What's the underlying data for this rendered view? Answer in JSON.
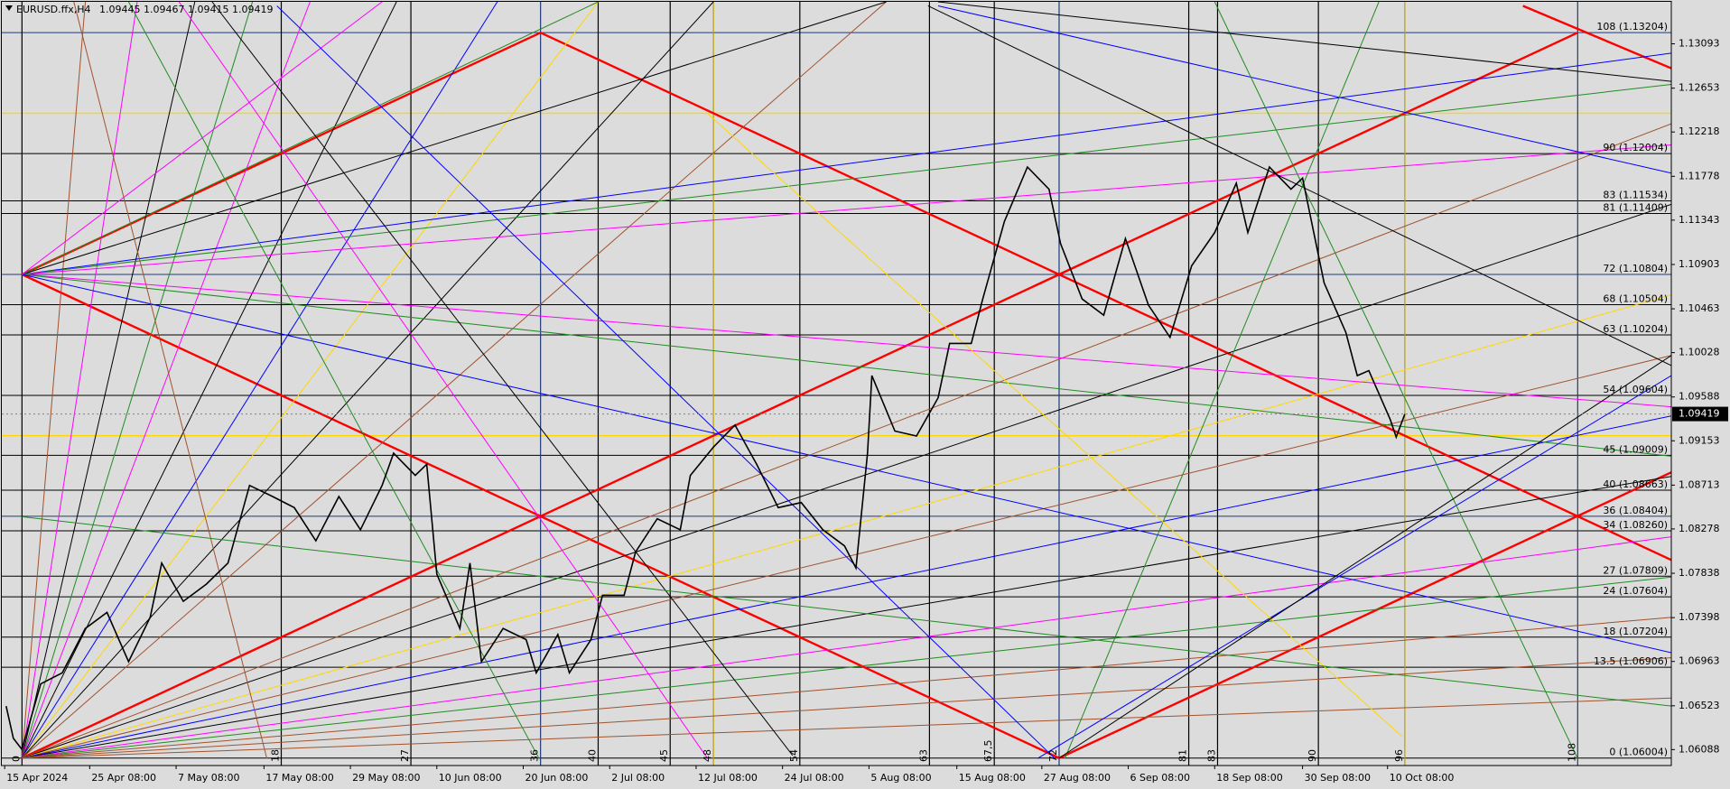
{
  "chart_data": {
    "type": "line",
    "title": "EURUSD.ffx,H4",
    "last_bar": [
      1.09445,
      1.09467,
      1.09415,
      1.09419
    ],
    "color": "#000000",
    "xlim": [
      -1.4,
      114.5
    ],
    "ylim": [
      1.0593,
      1.1351
    ],
    "yticks": [
      1.13093,
      1.12653,
      1.12218,
      1.11778,
      1.11343,
      1.10903,
      1.10463,
      1.10028,
      1.09588,
      1.09153,
      1.08713,
      1.08278,
      1.07838,
      1.07398,
      1.06963,
      1.06523,
      1.06088
    ],
    "xticks": [
      {
        "value": -1.2,
        "label": "15 Apr 2024"
      },
      {
        "value": 4.7,
        "label": "25 Apr 08:00"
      },
      {
        "value": 10.7,
        "label": "7 May 08:00"
      },
      {
        "value": 16.8,
        "label": "17 May 08:00"
      },
      {
        "value": 22.8,
        "label": "29 May 08:00"
      },
      {
        "value": 28.8,
        "label": "10 Jun 08:00"
      },
      {
        "value": 34.8,
        "label": "20 Jun 08:00"
      },
      {
        "value": 40.8,
        "label": "2 Jul 08:00"
      },
      {
        "value": 46.8,
        "label": "12 Jul 08:00"
      },
      {
        "value": 52.8,
        "label": "24 Jul 08:00"
      },
      {
        "value": 58.8,
        "label": "5 Aug 08:00"
      },
      {
        "value": 64.9,
        "label": "15 Aug 08:00"
      },
      {
        "value": 70.8,
        "label": "27 Aug 08:00"
      },
      {
        "value": 76.8,
        "label": "6 Sep 08:00"
      },
      {
        "value": 82.8,
        "label": "18 Sep 08:00"
      },
      {
        "value": 88.9,
        "label": "30 Sep 08:00"
      },
      {
        "value": 94.8,
        "label": "10 Oct 08:00"
      }
    ],
    "x": [
      -1.1,
      -0.6,
      0,
      1.3,
      2.8,
      4.4,
      5.9,
      7.4,
      8.9,
      9.7,
      11.2,
      12.8,
      14.3,
      15.8,
      17.4,
      18.9,
      20.4,
      22.0,
      23.5,
      25.0,
      25.8,
      27.3,
      28.1,
      28.8,
      30.4,
      31.1,
      31.9,
      33.4,
      35.0,
      35.7,
      37.2,
      38.0,
      39.5,
      40.3,
      41.8,
      42.6,
      44.1,
      45.7,
      46.4,
      48.0,
      49.5,
      51.0,
      52.5,
      54.1,
      55.6,
      57.1,
      57.9,
      58.7,
      59.0,
      60.6,
      62.1,
      63.6,
      64.4,
      65.9,
      66.7,
      68.2,
      69.8,
      71.3,
      72.1,
      73.6,
      75.1,
      76.6,
      78.2,
      79.7,
      81.2,
      82.8,
      84.3,
      85.1,
      86.6,
      88.1,
      88.9,
      90.4,
      91.9,
      92.7,
      93.5,
      95.0,
      95.4,
      96.0
    ],
    "values": [
      1.0652,
      1.062,
      1.0609,
      1.0674,
      1.0685,
      1.0729,
      1.0745,
      1.0696,
      1.074,
      1.0794,
      1.0756,
      1.0773,
      1.0794,
      1.0871,
      1.086,
      1.0849,
      1.0816,
      1.086,
      1.0827,
      1.0871,
      1.0903,
      1.0881,
      1.0892,
      1.0783,
      1.0729,
      1.0794,
      1.0696,
      1.0729,
      1.0718,
      1.0685,
      1.0723,
      1.0685,
      1.0718,
      1.0762,
      1.0762,
      1.0805,
      1.0838,
      1.0827,
      1.0881,
      1.0909,
      1.0931,
      1.0892,
      1.0849,
      1.0854,
      1.0827,
      1.0811,
      1.0789,
      1.0903,
      1.098,
      1.0925,
      1.092,
      1.0958,
      1.1012,
      1.1012,
      1.1056,
      1.1133,
      1.1187,
      1.1165,
      1.1111,
      1.1056,
      1.104,
      1.1116,
      1.105,
      1.1018,
      1.1089,
      1.1122,
      1.1171,
      1.1122,
      1.1187,
      1.1165,
      1.1176,
      1.1072,
      1.1023,
      1.098,
      1.0985,
      1.0936,
      1.0919,
      1.09419
    ],
    "levels": [
      {
        "value": 1.13204,
        "label": "108 (1.13204)",
        "color": "#1f3a7a"
      },
      {
        "value": 1.12004,
        "label": "90 (1.12004)",
        "color": "#000000"
      },
      {
        "value": 1.11534,
        "label": "83 (1.11534)",
        "color": "#000000"
      },
      {
        "value": 1.11409,
        "label": "81 (1.11409)",
        "color": "#000000"
      },
      {
        "value": 1.10804,
        "label": "72 (1.10804)",
        "color": "#1f3a7a"
      },
      {
        "value": 1.10504,
        "label": "68 (1.10504)",
        "color": "#000000"
      },
      {
        "value": 1.10204,
        "label": "63 (1.10204)",
        "color": "#000000"
      },
      {
        "value": 1.09604,
        "label": "54 (1.09604)",
        "color": "#000000"
      },
      {
        "value": 1.09009,
        "label": "45 (1.09009)",
        "color": "#000000"
      },
      {
        "value": 1.08663,
        "label": "40 (1.08663)",
        "color": "#000000"
      },
      {
        "value": 1.08404,
        "label": "36 (1.08404)",
        "color": "#1f3a7a"
      },
      {
        "value": 1.0826,
        "label": "34 (1.08260)",
        "color": "#000000"
      },
      {
        "value": 1.07809,
        "label": "27 (1.07809)",
        "color": "#000000"
      },
      {
        "value": 1.07604,
        "label": "24 (1.07604)",
        "color": "#000000"
      },
      {
        "value": 1.07204,
        "label": "18 (1.07204)",
        "color": "#000000"
      },
      {
        "value": 1.06906,
        "label": "13.5 (1.06906)",
        "color": "#000000"
      },
      {
        "value": 1.06004,
        "label": "0 (1.06004)",
        "color": "#000000"
      }
    ],
    "extra_levels": [
      1.12404,
      1.09204
    ],
    "extra_level_color": "#ffd700",
    "time_levels": [
      0,
      18,
      27,
      36,
      40,
      45,
      48,
      54,
      63,
      {
        "value": 67.5,
        "label": "67,5"
      },
      72,
      81,
      83,
      90,
      96,
      108
    ],
    "time_level_colors": [
      "#000000",
      "#000000",
      "#000000",
      "#1f3a7a",
      "#000000",
      "#000000",
      "#b8a000",
      "#000000",
      "#000000",
      "#000000",
      "#1f3a7a",
      "#000000",
      "#000000",
      "#000000",
      "#b8a000",
      "#1f3a7a"
    ],
    "lines": [
      {
        "points": [
          0,
          1.10804,
          36,
          1.13204
        ],
        "color": "#ff0000"
      },
      {
        "points": [
          0,
          1.10804,
          72,
          1.06004
        ],
        "color": "#ff0000"
      },
      {
        "points": [
          36,
          1.13204,
          114.5,
          1.0797
        ],
        "color": "#ff0000"
      },
      {
        "points": [
          72,
          1.06004,
          114.5,
          1.0884
        ],
        "color": "#ff0000"
      },
      {
        "points": [
          0,
          1.06004,
          108,
          1.13204
        ],
        "color": "#ff0000"
      },
      {
        "points": [
          104.2,
          1.1347,
          114.5,
          1.1285
        ],
        "color": "#ff0000"
      },
      {
        "points": [
          0,
          1.06004,
          4.4,
          1.1351
        ],
        "color": "#a0522d"
      },
      {
        "points": [
          0,
          1.06004,
          8,
          1.1351
        ],
        "color": "#ff00ff"
      },
      {
        "points": [
          0,
          1.06004,
          12,
          1.1351
        ],
        "color": "#000000"
      },
      {
        "points": [
          0,
          1.06004,
          16,
          1.1351
        ],
        "color": "#228b22"
      },
      {
        "points": [
          0,
          1.06004,
          20,
          1.1351
        ],
        "color": "#ff00ff"
      },
      {
        "points": [
          0,
          1.06004,
          26,
          1.1351
        ],
        "color": "#000000"
      },
      {
        "points": [
          0,
          1.06004,
          33,
          1.1351
        ],
        "color": "#0000ff"
      },
      {
        "points": [
          0,
          1.06004,
          40,
          1.1351
        ],
        "color": "#ffd700"
      },
      {
        "points": [
          0,
          1.06004,
          48,
          1.1351
        ],
        "color": "#000000"
      },
      {
        "points": [
          0,
          1.06004,
          60,
          1.1351
        ],
        "color": "#a0522d"
      },
      {
        "points": [
          0,
          1.06004,
          114.5,
          1.123
        ],
        "color": "#a0522d"
      },
      {
        "points": [
          0,
          1.06004,
          114.5,
          1.115
        ],
        "color": "#000000"
      },
      {
        "points": [
          0,
          1.06004,
          114.5,
          1.106
        ],
        "color": "#ffd700"
      },
      {
        "points": [
          0,
          1.06004,
          114.5,
          1.1
        ],
        "color": "#a0522d"
      },
      {
        "points": [
          0,
          1.06004,
          114.5,
          1.094
        ],
        "color": "#0000ff"
      },
      {
        "points": [
          0,
          1.06004,
          114.5,
          1.088
        ],
        "color": "#000000"
      },
      {
        "points": [
          0,
          1.06004,
          114.5,
          1.082
        ],
        "color": "#ff00ff"
      },
      {
        "points": [
          0,
          1.06004,
          114.5,
          1.078
        ],
        "color": "#228b22"
      },
      {
        "points": [
          0,
          1.06004,
          114.5,
          1.074
        ],
        "color": "#a0522d"
      },
      {
        "points": [
          0,
          1.06004,
          114.5,
          1.07
        ],
        "color": "#a0522d"
      },
      {
        "points": [
          0,
          1.06004,
          114.5,
          1.066
        ],
        "color": "#a0522d"
      },
      {
        "points": [
          0,
          1.10804,
          114.5,
          1.13
        ],
        "color": "#0000ff"
      },
      {
        "points": [
          0,
          1.10804,
          114.5,
          1.1269
        ],
        "color": "#228b22"
      },
      {
        "points": [
          0,
          1.10804,
          114.5,
          1.1209
        ],
        "color": "#ff00ff"
      },
      {
        "points": [
          0,
          1.10804,
          114.5,
          1.0949
        ],
        "color": "#ff00ff"
      },
      {
        "points": [
          0,
          1.10804,
          114.5,
          1.09
        ],
        "color": "#228b22"
      },
      {
        "points": [
          0,
          1.10804,
          114.5,
          1.0705
        ],
        "color": "#0000ff"
      },
      {
        "points": [
          0,
          1.10804,
          60,
          1.1351
        ],
        "color": "#000000"
      },
      {
        "points": [
          0,
          1.10804,
          40,
          1.1351
        ],
        "color": "#228b22"
      },
      {
        "points": [
          0,
          1.10804,
          25,
          1.1351
        ],
        "color": "#ff00ff"
      },
      {
        "points": [
          13.2,
          1.1351,
          53.5,
          1.0603
        ],
        "color": "#000000"
      },
      {
        "points": [
          62.9,
          1.1347,
          114.5,
          1.099
        ],
        "color": "#000000"
      },
      {
        "points": [
          17.7,
          1.1347,
          71.7,
          1.06
        ],
        "color": "#0000ff"
      },
      {
        "points": [
          70.5,
          1.06,
          114.5,
          1.098
        ],
        "color": "#0000ff"
      },
      {
        "points": [
          63.6,
          1.1347,
          114.5,
          1.1181
        ],
        "color": "#0000ff"
      },
      {
        "points": [
          72.4,
          1.06,
          94.2,
          1.1351
        ],
        "color": "#228b22"
      },
      {
        "points": [
          82.8,
          1.1351,
          108,
          1.06
        ],
        "color": "#228b22"
      },
      {
        "points": [
          47.6,
          1.124,
          95.8,
          1.0622
        ],
        "color": "#ffd700"
      },
      {
        "points": [
          0,
          1.084,
          114.5,
          1.0652
        ],
        "color": "#228b22"
      },
      {
        "points": [
          10.9,
          1.1351,
          47.6,
          1.06
        ],
        "color": "#ff00ff"
      },
      {
        "points": [
          7.4,
          1.1351,
          35.9,
          1.06
        ],
        "color": "#228b22"
      },
      {
        "points": [
          3.6,
          1.1351,
          17,
          1.06
        ],
        "color": "#a0522d"
      },
      {
        "points": [
          63.6,
          1.1351,
          114.5,
          1.1272
        ],
        "color": "#000000"
      },
      {
        "points": [
          72,
          1.06004,
          114.5,
          1.1
        ],
        "color": "#000000"
      }
    ]
  }
}
